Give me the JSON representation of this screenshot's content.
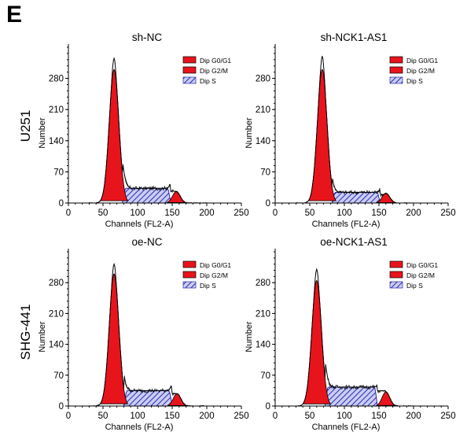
{
  "panel_letter": "E",
  "row_labels": [
    "U251",
    "SHG-441"
  ],
  "legend": {
    "g0g1": "Dip G0/G1",
    "g2m": "Dip G2/M",
    "s": "Dip S"
  },
  "colors": {
    "g0g1": "#e8141c",
    "g2m": "#e8141c",
    "s_stroke": "#2a2ab0",
    "s_fill": "#c9cdf2",
    "envelope": "#000000"
  },
  "chart_data": [
    {
      "type": "area",
      "title": "sh-NC",
      "xlabel": "Channels (FL2-A)",
      "ylabel": "Number",
      "xlim": [
        0,
        250
      ],
      "ylim": [
        0,
        350
      ],
      "xticks": [
        0,
        50,
        100,
        150,
        200,
        250
      ],
      "yticks": [
        0,
        70,
        140,
        210,
        280
      ],
      "g0g1_peak": {
        "center": 66,
        "height": 300
      },
      "g2m_peak": {
        "center": 156,
        "height": 26
      },
      "s_phase": {
        "start": 78,
        "end": 148,
        "level": 33
      },
      "envelope_max": 325
    },
    {
      "type": "area",
      "title": "sh-NCK1-AS1",
      "xlabel": "Channels (FL2-A)",
      "ylabel": "Number",
      "xlim": [
        0,
        250
      ],
      "ylim": [
        0,
        350
      ],
      "xticks": [
        0,
        50,
        100,
        150,
        200,
        250
      ],
      "yticks": [
        0,
        70,
        140,
        210,
        280
      ],
      "g0g1_peak": {
        "center": 68,
        "height": 300
      },
      "g2m_peak": {
        "center": 160,
        "height": 22
      },
      "s_phase": {
        "start": 82,
        "end": 152,
        "level": 24
      },
      "envelope_max": 330
    },
    {
      "type": "area",
      "title": "oe-NC",
      "xlabel": "Channels (FL2-A)",
      "ylabel": "Number",
      "xlim": [
        0,
        250
      ],
      "ylim": [
        0,
        350
      ],
      "xticks": [
        0,
        50,
        100,
        150,
        200,
        250
      ],
      "yticks": [
        0,
        70,
        140,
        210,
        280
      ],
      "g0g1_peak": {
        "center": 66,
        "height": 300
      },
      "g2m_peak": {
        "center": 157,
        "height": 28
      },
      "s_phase": {
        "start": 80,
        "end": 150,
        "level": 35
      },
      "envelope_max": 322
    },
    {
      "type": "area",
      "title": "oe-NCK1-AS1",
      "xlabel": "Channels (FL2-A)",
      "ylabel": "Number",
      "xlim": [
        0,
        250
      ],
      "ylim": [
        0,
        350
      ],
      "xticks": [
        0,
        50,
        100,
        150,
        200,
        250
      ],
      "yticks": [
        0,
        70,
        140,
        210,
        280
      ],
      "g0g1_peak": {
        "center": 60,
        "height": 285
      },
      "g2m_peak": {
        "center": 160,
        "height": 32
      },
      "s_phase": {
        "start": 72,
        "end": 148,
        "level": 43
      },
      "envelope_max": 310
    }
  ]
}
